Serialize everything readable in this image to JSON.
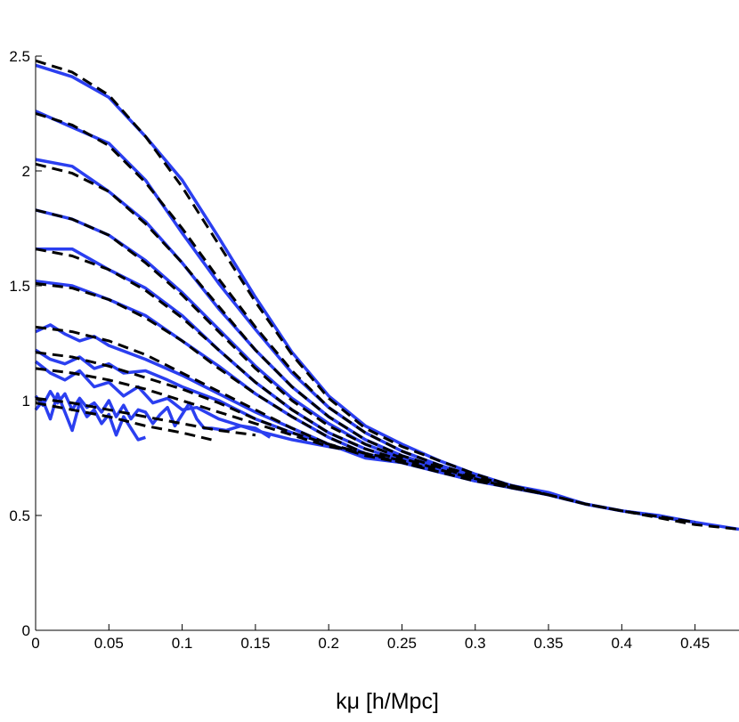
{
  "chart_data": {
    "type": "line",
    "xlabel": "kμ [h/Mpc]",
    "ylabel": "",
    "xlim": [
      0,
      0.48
    ],
    "ylim": [
      0,
      2.5
    ],
    "xticks": [
      "0",
      "0.05",
      "0.1",
      "0.15",
      "0.2",
      "0.25",
      "0.3",
      "0.35",
      "0.4",
      "0.45"
    ],
    "yticks": [
      "0",
      "0.5",
      "1",
      "1.5",
      "2",
      "2.5"
    ],
    "grid": false,
    "legend": "none",
    "colors": {
      "measured": "#2b3ff0",
      "model": "#000000"
    },
    "series": [
      {
        "style": "solid",
        "x": [
          0,
          0.025,
          0.05,
          0.075,
          0.1,
          0.125,
          0.15,
          0.175,
          0.2,
          0.225,
          0.25,
          0.275,
          0.3,
          0.325,
          0.35,
          0.375,
          0.4,
          0.425,
          0.45,
          0.48
        ],
        "y": [
          2.46,
          2.41,
          2.32,
          2.15,
          1.96,
          1.71,
          1.45,
          1.21,
          1.02,
          0.89,
          0.81,
          0.74,
          0.68,
          0.63,
          0.6,
          0.55,
          0.52,
          0.5,
          0.47,
          0.44
        ]
      },
      {
        "style": "dashed",
        "x": [
          0,
          0.025,
          0.05,
          0.075,
          0.1,
          0.125,
          0.15,
          0.175,
          0.2,
          0.225,
          0.25,
          0.275,
          0.3,
          0.325,
          0.35,
          0.375,
          0.4,
          0.425,
          0.45,
          0.48
        ],
        "y": [
          2.48,
          2.43,
          2.33,
          2.15,
          1.93,
          1.68,
          1.43,
          1.2,
          1.01,
          0.88,
          0.8,
          0.74,
          0.68,
          0.63,
          0.59,
          0.55,
          0.52,
          0.49,
          0.46,
          0.44
        ]
      },
      {
        "style": "solid",
        "x": [
          0,
          0.025,
          0.05,
          0.075,
          0.1,
          0.125,
          0.15,
          0.175,
          0.2,
          0.225,
          0.25,
          0.275,
          0.3,
          0.325,
          0.35,
          0.375,
          0.4,
          0.45
        ],
        "y": [
          2.26,
          2.19,
          2.12,
          1.96,
          1.73,
          1.51,
          1.31,
          1.12,
          0.97,
          0.86,
          0.78,
          0.72,
          0.67,
          0.63,
          0.59,
          0.55,
          0.52,
          0.47
        ]
      },
      {
        "style": "dashed",
        "x": [
          0,
          0.025,
          0.05,
          0.075,
          0.1,
          0.125,
          0.15,
          0.175,
          0.2,
          0.225,
          0.25,
          0.275,
          0.3,
          0.325,
          0.35,
          0.375,
          0.4,
          0.45
        ],
        "y": [
          2.25,
          2.2,
          2.11,
          1.95,
          1.75,
          1.53,
          1.32,
          1.13,
          0.97,
          0.86,
          0.78,
          0.72,
          0.67,
          0.63,
          0.59,
          0.55,
          0.52,
          0.47
        ]
      },
      {
        "style": "solid",
        "x": [
          0,
          0.025,
          0.05,
          0.075,
          0.1,
          0.125,
          0.15,
          0.175,
          0.2,
          0.225,
          0.25,
          0.275,
          0.3,
          0.325,
          0.35,
          0.375,
          0.4,
          0.45
        ],
        "y": [
          2.05,
          2.02,
          1.91,
          1.78,
          1.6,
          1.4,
          1.22,
          1.06,
          0.93,
          0.83,
          0.76,
          0.71,
          0.66,
          0.62,
          0.59,
          0.55,
          0.52,
          0.47
        ]
      },
      {
        "style": "dashed",
        "x": [
          0,
          0.025,
          0.05,
          0.075,
          0.1,
          0.125,
          0.15,
          0.175,
          0.2,
          0.225,
          0.25,
          0.275,
          0.3,
          0.325,
          0.35,
          0.375,
          0.4,
          0.45
        ],
        "y": [
          2.03,
          1.99,
          1.91,
          1.77,
          1.6,
          1.41,
          1.22,
          1.06,
          0.93,
          0.83,
          0.76,
          0.71,
          0.66,
          0.62,
          0.59,
          0.55,
          0.52,
          0.47
        ]
      },
      {
        "style": "solid",
        "x": [
          0,
          0.025,
          0.05,
          0.075,
          0.1,
          0.125,
          0.15,
          0.175,
          0.2,
          0.225,
          0.25,
          0.275,
          0.3,
          0.325,
          0.35
        ],
        "y": [
          1.83,
          1.79,
          1.72,
          1.61,
          1.47,
          1.31,
          1.15,
          1.01,
          0.9,
          0.81,
          0.75,
          0.7,
          0.66,
          0.62,
          0.59
        ]
      },
      {
        "style": "dashed",
        "x": [
          0,
          0.025,
          0.05,
          0.075,
          0.1,
          0.125,
          0.15,
          0.175,
          0.2,
          0.225,
          0.25,
          0.275,
          0.3,
          0.325,
          0.35
        ],
        "y": [
          1.83,
          1.79,
          1.72,
          1.6,
          1.46,
          1.3,
          1.14,
          1.0,
          0.89,
          0.81,
          0.75,
          0.7,
          0.66,
          0.62,
          0.59
        ]
      },
      {
        "style": "solid",
        "x": [
          0,
          0.025,
          0.05,
          0.075,
          0.1,
          0.125,
          0.15,
          0.175,
          0.2,
          0.225,
          0.25,
          0.275,
          0.3,
          0.325
        ],
        "y": [
          1.66,
          1.66,
          1.57,
          1.49,
          1.37,
          1.22,
          1.08,
          0.96,
          0.86,
          0.79,
          0.74,
          0.69,
          0.65,
          0.62
        ]
      },
      {
        "style": "dashed",
        "x": [
          0,
          0.025,
          0.05,
          0.075,
          0.1,
          0.125,
          0.15,
          0.175,
          0.2,
          0.225,
          0.25,
          0.275,
          0.3,
          0.325
        ],
        "y": [
          1.66,
          1.63,
          1.57,
          1.48,
          1.36,
          1.22,
          1.08,
          0.96,
          0.86,
          0.79,
          0.74,
          0.69,
          0.65,
          0.62
        ]
      },
      {
        "style": "solid",
        "x": [
          0,
          0.025,
          0.05,
          0.075,
          0.1,
          0.125,
          0.15,
          0.175,
          0.2,
          0.225,
          0.25,
          0.275,
          0.3
        ],
        "y": [
          1.52,
          1.5,
          1.44,
          1.37,
          1.26,
          1.15,
          1.03,
          0.93,
          0.84,
          0.77,
          0.73,
          0.69,
          0.65
        ]
      },
      {
        "style": "dashed",
        "x": [
          0,
          0.025,
          0.05,
          0.075,
          0.1,
          0.125,
          0.15,
          0.175,
          0.2,
          0.225,
          0.25,
          0.275,
          0.3
        ],
        "y": [
          1.51,
          1.49,
          1.44,
          1.36,
          1.26,
          1.14,
          1.03,
          0.93,
          0.84,
          0.77,
          0.73,
          0.69,
          0.65
        ]
      },
      {
        "style": "solid",
        "x": [
          0,
          0.01,
          0.02,
          0.03,
          0.04,
          0.05,
          0.075,
          0.1,
          0.125,
          0.15,
          0.175,
          0.2,
          0.225,
          0.25,
          0.275
        ],
        "y": [
          1.3,
          1.33,
          1.29,
          1.26,
          1.28,
          1.24,
          1.18,
          1.11,
          1.03,
          0.95,
          0.88,
          0.81,
          0.75,
          0.73,
          0.69
        ]
      },
      {
        "style": "dashed",
        "x": [
          0,
          0.025,
          0.05,
          0.075,
          0.1,
          0.125,
          0.15,
          0.175,
          0.2,
          0.225,
          0.25,
          0.275
        ],
        "y": [
          1.32,
          1.3,
          1.26,
          1.2,
          1.12,
          1.04,
          0.96,
          0.88,
          0.81,
          0.76,
          0.73,
          0.69
        ]
      },
      {
        "style": "solid",
        "x": [
          0,
          0.01,
          0.02,
          0.03,
          0.04,
          0.05,
          0.06,
          0.075,
          0.09,
          0.1,
          0.125,
          0.15,
          0.175,
          0.2,
          0.225,
          0.25
        ],
        "y": [
          1.22,
          1.18,
          1.16,
          1.19,
          1.14,
          1.16,
          1.12,
          1.13,
          1.09,
          1.06,
          1.0,
          0.92,
          0.86,
          0.81,
          0.76,
          0.74
        ]
      },
      {
        "style": "dashed",
        "x": [
          0,
          0.025,
          0.05,
          0.075,
          0.1,
          0.125,
          0.15,
          0.175,
          0.2,
          0.225,
          0.25
        ],
        "y": [
          1.21,
          1.19,
          1.15,
          1.1,
          1.05,
          0.99,
          0.92,
          0.86,
          0.81,
          0.77,
          0.74
        ]
      },
      {
        "style": "solid",
        "x": [
          0,
          0.01,
          0.02,
          0.03,
          0.04,
          0.05,
          0.06,
          0.07,
          0.08,
          0.09,
          0.1,
          0.11,
          0.125,
          0.15,
          0.175,
          0.2,
          0.225
        ],
        "y": [
          1.17,
          1.12,
          1.09,
          1.13,
          1.06,
          1.08,
          1.02,
          1.06,
          0.99,
          1.01,
          0.96,
          0.97,
          0.92,
          0.87,
          0.83,
          0.8,
          0.77
        ]
      },
      {
        "style": "dashed",
        "x": [
          0,
          0.025,
          0.05,
          0.075,
          0.1,
          0.125,
          0.15,
          0.175,
          0.2,
          0.225
        ],
        "y": [
          1.14,
          1.12,
          1.09,
          1.05,
          1.0,
          0.95,
          0.9,
          0.85,
          0.8,
          0.77
        ]
      },
      {
        "style": "solid",
        "x": [
          0,
          0.005,
          0.01,
          0.015,
          0.02,
          0.025,
          0.03,
          0.035,
          0.04,
          0.045,
          0.05,
          0.055,
          0.06,
          0.065,
          0.07,
          0.075,
          0.08,
          0.085,
          0.09,
          0.095,
          0.1,
          0.105,
          0.11,
          0.115,
          0.12,
          0.13,
          0.14,
          0.15,
          0.16
        ],
        "y": [
          1.02,
          0.98,
          1.04,
          0.99,
          1.03,
          0.96,
          1.01,
          0.97,
          0.99,
          0.95,
          1.0,
          0.93,
          0.98,
          0.92,
          0.96,
          0.95,
          0.9,
          0.94,
          0.97,
          0.89,
          0.94,
          0.99,
          0.92,
          0.88,
          0.88,
          0.87,
          0.89,
          0.88,
          0.84
        ]
      },
      {
        "style": "dashed",
        "x": [
          0,
          0.025,
          0.05,
          0.075,
          0.1,
          0.125,
          0.15
        ],
        "y": [
          1.01,
          0.99,
          0.96,
          0.93,
          0.9,
          0.87,
          0.85
        ]
      },
      {
        "style": "solid",
        "x": [
          0,
          0.005,
          0.01,
          0.015,
          0.02,
          0.025,
          0.03,
          0.035,
          0.04,
          0.045,
          0.05,
          0.055,
          0.06,
          0.065,
          0.07,
          0.075
        ],
        "y": [
          0.96,
          1.0,
          0.92,
          1.03,
          0.95,
          0.87,
          0.99,
          0.93,
          0.96,
          0.9,
          0.94,
          0.85,
          0.93,
          0.88,
          0.83,
          0.84
        ]
      },
      {
        "style": "dashed",
        "x": [
          0,
          0.025,
          0.05,
          0.075,
          0.1,
          0.12
        ],
        "y": [
          0.99,
          0.96,
          0.93,
          0.89,
          0.86,
          0.83
        ]
      }
    ]
  }
}
